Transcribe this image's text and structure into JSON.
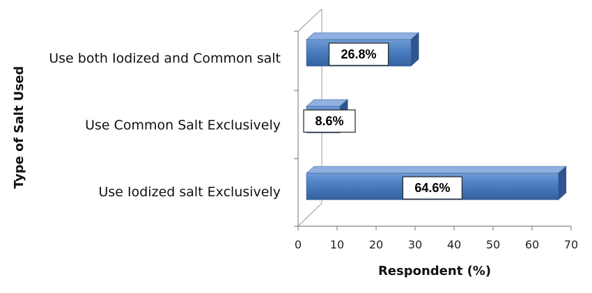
{
  "chart_data": {
    "type": "bar",
    "orientation": "horizontal",
    "style": "3d",
    "categories": [
      "Use both Iodized and Common salt",
      "Use Common Salt Exclusively",
      "Use Iodized salt Exclusively"
    ],
    "values": [
      26.8,
      8.6,
      64.6
    ],
    "data_labels": [
      "26.8%",
      "8.6%",
      "64.6%"
    ],
    "xlabel": "Respondent (%)",
    "ylabel": "Type of Salt Used",
    "xlim": [
      0,
      70
    ],
    "xticks": [
      "0",
      "10",
      "20",
      "30",
      "40",
      "50",
      "60",
      "70"
    ],
    "grid": false,
    "legend": "none",
    "bar_color": "#4a7cc0"
  }
}
